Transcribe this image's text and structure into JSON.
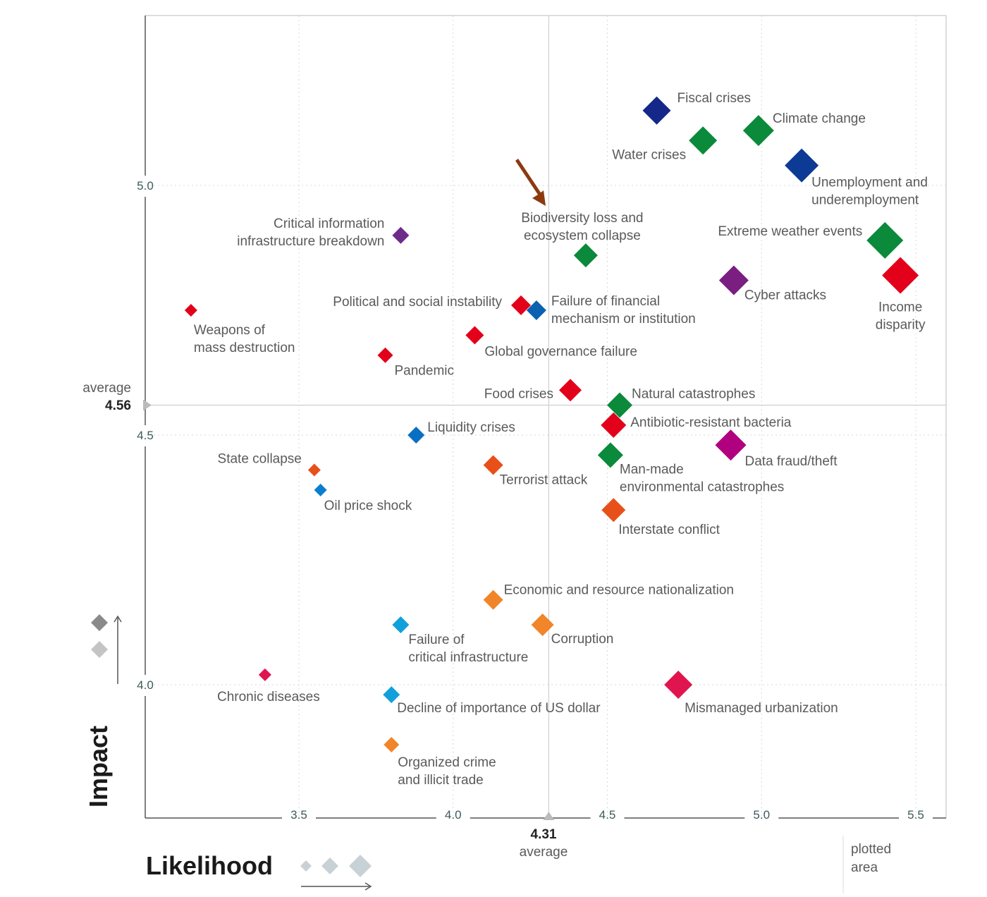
{
  "chart_data": {
    "type": "scatter",
    "xlabel": "Likelihood",
    "ylabel": "Impact",
    "xlim": [
      3.0,
      5.6
    ],
    "ylim": [
      3.73,
      5.34
    ],
    "x_ticks": [
      "3.5",
      "4.0",
      "4.5",
      "5.0",
      "5.5"
    ],
    "x_tick_values": [
      3.5,
      4.0,
      4.5,
      5.0,
      5.5
    ],
    "y_ticks": [
      "5.0",
      "4.5",
      "4.0"
    ],
    "y_tick_values": [
      5.0,
      4.5,
      4.0
    ],
    "grid": "dotted",
    "average_x": {
      "value": 4.31,
      "label": "4.31",
      "caption": "average"
    },
    "average_y": {
      "value": 4.56,
      "label": "4.56",
      "caption": "average"
    },
    "plotted_area_label": [
      "plotted",
      "area"
    ],
    "highlight_arrow_color": "#8b3a0f",
    "points": [
      {
        "label": [
          "Fiscal crises"
        ],
        "x": 4.66,
        "y": 5.15,
        "color": "#15288a"
      },
      {
        "label": [
          "Climate change"
        ],
        "x": 4.99,
        "y": 5.11,
        "color": "#0a8a3a"
      },
      {
        "label": [
          "Water crises"
        ],
        "x": 4.81,
        "y": 5.09,
        "color": "#0a8a3a"
      },
      {
        "label": [
          "Unemployment and",
          "underemployment"
        ],
        "x": 5.13,
        "y": 5.04,
        "color": "#0d3a94"
      },
      {
        "label": [
          "Extreme weather events"
        ],
        "x": 5.4,
        "y": 4.89,
        "color": "#0a8a3a"
      },
      {
        "label": [
          "Income",
          "disparity"
        ],
        "x": 5.45,
        "y": 4.82,
        "color": "#e2001a"
      },
      {
        "label": [
          "Cyber attacks"
        ],
        "x": 4.91,
        "y": 4.81,
        "color": "#7a1e82"
      },
      {
        "label": [
          "Biodiversity loss and",
          "ecosystem collapse"
        ],
        "x": 4.43,
        "y": 4.86,
        "color": "#0a8a3a"
      },
      {
        "label": [
          "Critical information",
          "infrastructure breakdown"
        ],
        "x": 3.83,
        "y": 4.9,
        "color": "#6e2a8a"
      },
      {
        "label": [
          "Weapons of",
          "mass destruction"
        ],
        "x": 3.15,
        "y": 4.75,
        "color": "#e2001a"
      },
      {
        "label": [
          "Political and social instability"
        ],
        "x": 4.22,
        "y": 4.76,
        "color": "#e2001a"
      },
      {
        "label": [
          "Failure of financial",
          "mechanism or institution"
        ],
        "x": 4.27,
        "y": 4.75,
        "color": "#0a62b0"
      },
      {
        "label": [
          "Global governance failure"
        ],
        "x": 4.07,
        "y": 4.7,
        "color": "#e2001a"
      },
      {
        "label": [
          "Pandemic"
        ],
        "x": 3.78,
        "y": 4.66,
        "color": "#e2001a"
      },
      {
        "label": [
          "Food crises"
        ],
        "x": 4.38,
        "y": 4.59,
        "color": "#e2001a"
      },
      {
        "label": [
          "Natural catastrophes"
        ],
        "x": 4.54,
        "y": 4.56,
        "color": "#0a8a3a"
      },
      {
        "label": [
          "Antibiotic-resistant bacteria"
        ],
        "x": 4.52,
        "y": 4.52,
        "color": "#e2001a"
      },
      {
        "label": [
          "Liquidity crises"
        ],
        "x": 3.88,
        "y": 4.5,
        "color": "#0a6fc2"
      },
      {
        "label": [
          "Data fraud/theft"
        ],
        "x": 4.9,
        "y": 4.48,
        "color": "#b0007f"
      },
      {
        "label": [
          "Man-made",
          "environmental catastrophes"
        ],
        "x": 4.51,
        "y": 4.46,
        "color": "#0a8a3a"
      },
      {
        "label": [
          "State collapse"
        ],
        "x": 3.55,
        "y": 4.43,
        "color": "#e8501a"
      },
      {
        "label": [
          "Terrorist attack"
        ],
        "x": 4.13,
        "y": 4.44,
        "color": "#e8501a"
      },
      {
        "label": [
          "Oil price shock"
        ],
        "x": 3.57,
        "y": 4.39,
        "color": "#0a7fd0"
      },
      {
        "label": [
          "Interstate conflict"
        ],
        "x": 4.52,
        "y": 4.35,
        "color": "#e8501a"
      },
      {
        "label": [
          "Economic and resource nationalization"
        ],
        "x": 4.13,
        "y": 4.17,
        "color": "#f0852a"
      },
      {
        "label": [
          "Corruption"
        ],
        "x": 4.29,
        "y": 4.12,
        "color": "#f0852a"
      },
      {
        "label": [
          "Failure of",
          "critical infrastructure"
        ],
        "x": 3.83,
        "y": 4.12,
        "color": "#12a0dc"
      },
      {
        "label": [
          "Chronic diseases"
        ],
        "x": 3.39,
        "y": 4.02,
        "color": "#e0154f"
      },
      {
        "label": [
          "Mismanaged urbanization"
        ],
        "x": 4.73,
        "y": 4.0,
        "color": "#e0154f"
      },
      {
        "label": [
          "Decline of importance of US dollar"
        ],
        "x": 3.8,
        "y": 3.98,
        "color": "#12a0dc"
      },
      {
        "label": [
          "Organized crime",
          "and illicit trade"
        ],
        "x": 3.8,
        "y": 3.88,
        "color": "#f0852a"
      }
    ]
  }
}
